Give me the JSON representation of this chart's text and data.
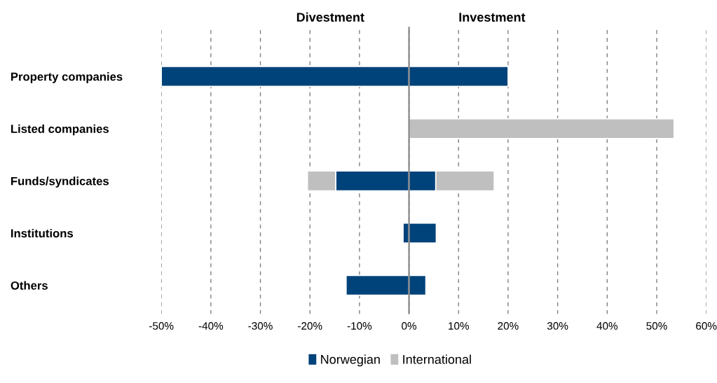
{
  "chart_data": {
    "type": "bar",
    "orientation": "horizontal",
    "stacked": true,
    "categories": [
      "Property companies",
      "Listed companies",
      "Funds/syndicates",
      "Institutions",
      "Others"
    ],
    "series": [
      {
        "name": "Norwegian",
        "color": "#00427a",
        "values": [
          -50,
          null,
          -14.8,
          -1.2,
          -12.7
        ]
      },
      {
        "name": "International",
        "color": "#bfbfbf",
        "values": [
          null,
          null,
          -5.7,
          null,
          null
        ]
      },
      {
        "color": "#00427a",
        "values": [
          20,
          null,
          5.4,
          5.5,
          3.4
        ]
      },
      {
        "color": "#bfbfbf",
        "values": [
          null,
          53.5,
          11.8,
          null,
          null
        ]
      }
    ],
    "xlim": [
      -50,
      60
    ],
    "xticks": [
      {
        "value": -50,
        "label": "-50%"
      },
      {
        "value": -40,
        "label": "-40%"
      },
      {
        "value": -30,
        "label": "-30%"
      },
      {
        "value": -20,
        "label": "-20%"
      },
      {
        "value": -10,
        "label": "-10%"
      },
      {
        "value": 0,
        "label": "0%"
      },
      {
        "value": 10,
        "label": "10%"
      },
      {
        "value": 20,
        "label": "20%"
      },
      {
        "value": 30,
        "label": "30%"
      },
      {
        "value": 40,
        "label": "40%"
      },
      {
        "value": 50,
        "label": "50%"
      },
      {
        "value": 60,
        "label": "60%"
      }
    ],
    "ref_lines": [
      {
        "axis": "x",
        "value": 0,
        "color": "#808080",
        "line_style": "solid"
      }
    ],
    "annotations": [
      "Divestment",
      "Investment"
    ],
    "grid": "x",
    "legend": "bottom"
  }
}
